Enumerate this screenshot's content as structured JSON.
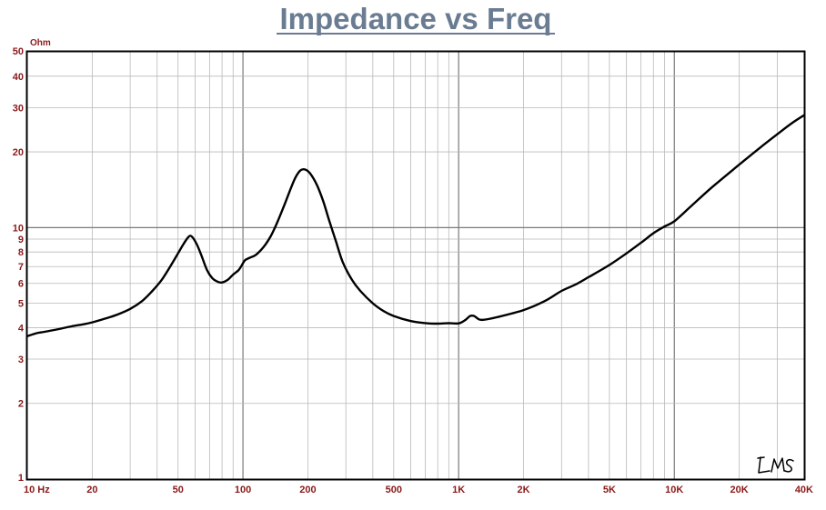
{
  "chart_data": {
    "type": "line",
    "title": "Impedance vs Freq",
    "ylabel": "Ohm",
    "x_scale": "log",
    "y_scale": "log",
    "xlim": [
      10,
      40000
    ],
    "ylim": [
      1,
      50
    ],
    "grid": true,
    "x_tick_labels": [
      {
        "value": 10,
        "label": "10  Hz"
      },
      {
        "value": 20,
        "label": "20"
      },
      {
        "value": 50,
        "label": "50"
      },
      {
        "value": 100,
        "label": "100"
      },
      {
        "value": 200,
        "label": "200"
      },
      {
        "value": 500,
        "label": "500"
      },
      {
        "value": 1000,
        "label": "1K"
      },
      {
        "value": 2000,
        "label": "2K"
      },
      {
        "value": 5000,
        "label": "5K"
      },
      {
        "value": 10000,
        "label": "10K"
      },
      {
        "value": 20000,
        "label": "20K"
      },
      {
        "value": 40000,
        "label": "40K"
      }
    ],
    "y_tick_labels": [
      {
        "value": 1,
        "label": "1"
      },
      {
        "value": 2,
        "label": "2"
      },
      {
        "value": 3,
        "label": "3"
      },
      {
        "value": 4,
        "label": "4"
      },
      {
        "value": 5,
        "label": "5"
      },
      {
        "value": 6,
        "label": "6"
      },
      {
        "value": 7,
        "label": "7"
      },
      {
        "value": 8,
        "label": "8"
      },
      {
        "value": 9,
        "label": "9"
      },
      {
        "value": 10,
        "label": "10"
      },
      {
        "value": 20,
        "label": "20"
      },
      {
        "value": 30,
        "label": "30"
      },
      {
        "value": 40,
        "label": "40"
      },
      {
        "value": 50,
        "label": "50"
      }
    ],
    "series": [
      {
        "color": "#000000",
        "points": [
          [
            10,
            3.7
          ],
          [
            11,
            3.8
          ],
          [
            12,
            3.85
          ],
          [
            14,
            3.95
          ],
          [
            16,
            4.05
          ],
          [
            18,
            4.12
          ],
          [
            20,
            4.2
          ],
          [
            23,
            4.35
          ],
          [
            26,
            4.5
          ],
          [
            30,
            4.75
          ],
          [
            34,
            5.1
          ],
          [
            38,
            5.6
          ],
          [
            42,
            6.2
          ],
          [
            46,
            7.0
          ],
          [
            50,
            7.9
          ],
          [
            53,
            8.6
          ],
          [
            56,
            9.2
          ],
          [
            58,
            9.2
          ],
          [
            61,
            8.6
          ],
          [
            64,
            7.8
          ],
          [
            68,
            6.8
          ],
          [
            72,
            6.3
          ],
          [
            76,
            6.1
          ],
          [
            80,
            6.05
          ],
          [
            85,
            6.2
          ],
          [
            90,
            6.5
          ],
          [
            95,
            6.75
          ],
          [
            98,
            7.0
          ],
          [
            102,
            7.4
          ],
          [
            108,
            7.6
          ],
          [
            115,
            7.8
          ],
          [
            125,
            8.4
          ],
          [
            135,
            9.3
          ],
          [
            145,
            10.6
          ],
          [
            155,
            12.2
          ],
          [
            165,
            14.0
          ],
          [
            175,
            15.8
          ],
          [
            185,
            16.9
          ],
          [
            195,
            17.0
          ],
          [
            205,
            16.4
          ],
          [
            220,
            14.8
          ],
          [
            235,
            12.8
          ],
          [
            250,
            10.8
          ],
          [
            270,
            8.8
          ],
          [
            290,
            7.3
          ],
          [
            320,
            6.2
          ],
          [
            350,
            5.6
          ],
          [
            400,
            5.0
          ],
          [
            450,
            4.65
          ],
          [
            500,
            4.45
          ],
          [
            600,
            4.25
          ],
          [
            700,
            4.17
          ],
          [
            800,
            4.15
          ],
          [
            900,
            4.17
          ],
          [
            1000,
            4.16
          ],
          [
            1070,
            4.28
          ],
          [
            1130,
            4.45
          ],
          [
            1180,
            4.45
          ],
          [
            1240,
            4.32
          ],
          [
            1300,
            4.3
          ],
          [
            1500,
            4.4
          ],
          [
            2000,
            4.7
          ],
          [
            2500,
            5.1
          ],
          [
            3000,
            5.6
          ],
          [
            3500,
            5.95
          ],
          [
            4000,
            6.35
          ],
          [
            5000,
            7.1
          ],
          [
            6000,
            7.9
          ],
          [
            7000,
            8.7
          ],
          [
            8000,
            9.5
          ],
          [
            9000,
            10.1
          ],
          [
            10000,
            10.6
          ],
          [
            12000,
            12.2
          ],
          [
            15000,
            14.5
          ],
          [
            20000,
            17.8
          ],
          [
            25000,
            20.8
          ],
          [
            30000,
            23.5
          ],
          [
            35000,
            26.0
          ],
          [
            40000,
            28.0
          ]
        ]
      }
    ]
  }
}
